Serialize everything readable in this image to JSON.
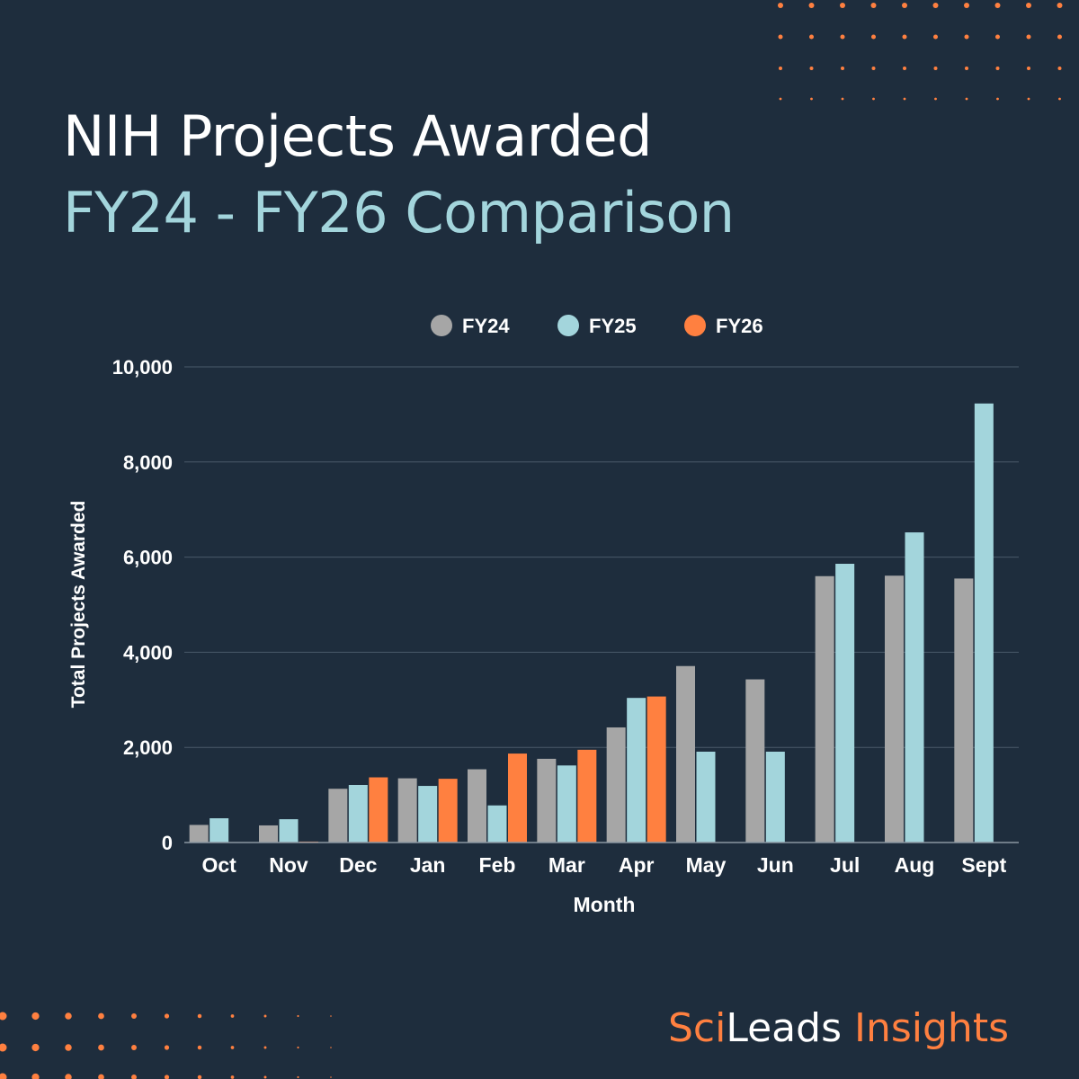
{
  "title": {
    "line1": "NIH Projects Awarded",
    "line2": "FY24 - FY26 Comparison"
  },
  "brand": {
    "part1": "Sci",
    "part2": "Leads",
    "part3": " Insights"
  },
  "colors": {
    "background": "#1e2d3d",
    "FY24": "#a6a6a6",
    "FY25": "#a3d5dc",
    "FY26": "#ff8040",
    "accent": "#ff8040"
  },
  "chart_data": {
    "type": "bar",
    "xlabel": "Month",
    "ylabel": "Total Projects Awarded",
    "ylim": [
      0,
      10000
    ],
    "yticks": [
      0,
      2000,
      4000,
      6000,
      8000,
      10000
    ],
    "ytick_labels": [
      "0",
      "2,000",
      "4,000",
      "6,000",
      "8,000",
      "10,000"
    ],
    "grid": true,
    "legend_position": "top-center",
    "categories": [
      "Oct",
      "Nov",
      "Dec",
      "Jan",
      "Feb",
      "Mar",
      "Apr",
      "May",
      "Jun",
      "Jul",
      "Aug",
      "Sept"
    ],
    "series": [
      {
        "name": "FY24",
        "color": "#a6a6a6",
        "values": [
          370,
          360,
          1130,
          1350,
          1540,
          1760,
          2420,
          3710,
          3430,
          5600,
          5610,
          5550
        ]
      },
      {
        "name": "FY25",
        "color": "#a3d5dc",
        "values": [
          510,
          490,
          1210,
          1190,
          780,
          1620,
          3040,
          1910,
          1910,
          5860,
          6520,
          9230
        ]
      },
      {
        "name": "FY26",
        "color": "#ff8040",
        "values": [
          null,
          20,
          1370,
          1340,
          1870,
          1950,
          3070,
          null,
          null,
          null,
          null,
          null
        ]
      }
    ]
  }
}
